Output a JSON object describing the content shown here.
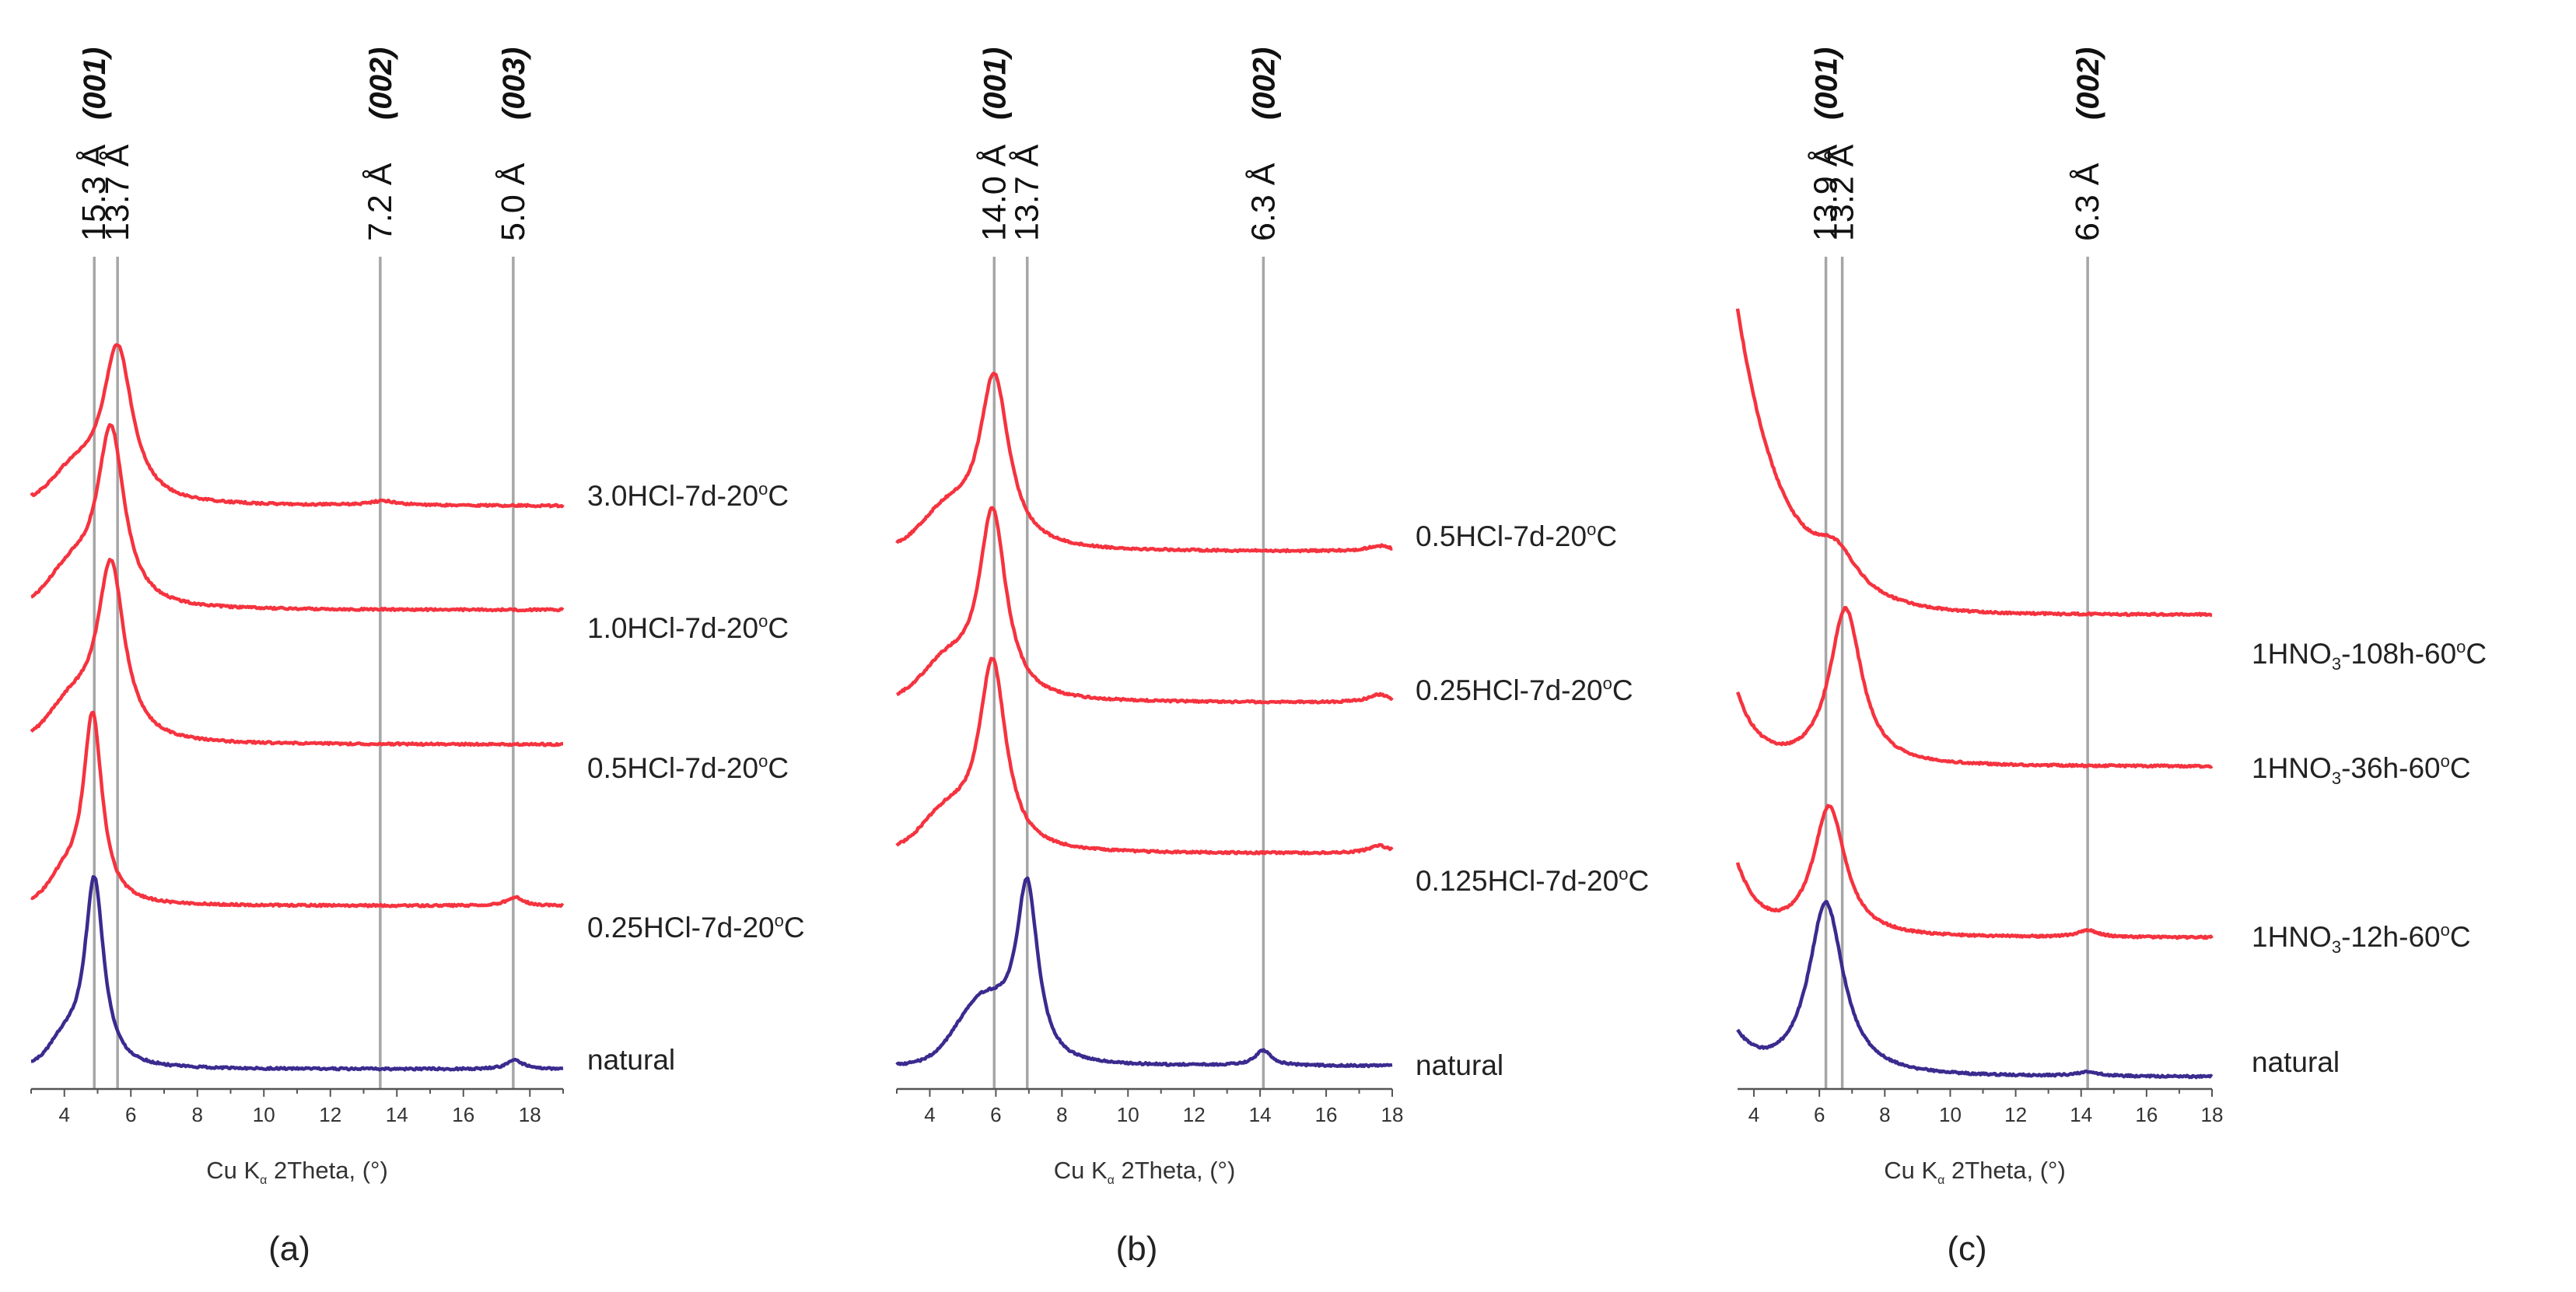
{
  "chart_data": [
    {
      "id": "a",
      "type": "line",
      "panel_label": "(a)",
      "xlabel": {
        "pre": "Cu K",
        "sub": "α",
        "post": " 2Theta, (°)"
      },
      "xlim": [
        3,
        19
      ],
      "xticks": [
        4,
        6,
        8,
        10,
        12,
        14,
        16,
        18
      ],
      "xtick_labels": [
        "4",
        "6",
        "8",
        "10",
        "12",
        "14",
        "16",
        "18"
      ],
      "reference_lines": [
        {
          "x": 4.9,
          "d": "15.3 Å",
          "hkl": "(001)"
        },
        {
          "x": 5.6,
          "d": "13.7 Å",
          "hkl": ""
        },
        {
          "x": 13.5,
          "d": "7.2 Å",
          "hkl": "(002)"
        },
        {
          "x": 17.5,
          "d": "5.0 Å",
          "hkl": "(003)"
        }
      ],
      "series": [
        {
          "name": "3.0HCl-7d-20°C",
          "label_pre": "3.0HCl-7d-20",
          "label_post": "C",
          "color": "#f5333f",
          "offset": 3.9,
          "peaks": [
            {
              "x": 5.6,
              "h": 1.45,
              "w": 0.55
            },
            {
              "x": 13.6,
              "h": 0.04,
              "w": 0.5
            }
          ],
          "shoulder": {
            "x": 4.3,
            "h": 0.25,
            "w": 0.9
          }
        },
        {
          "name": "1.0HCl-7d-20°C",
          "label_pre": "1.0HCl-7d-20",
          "label_post": "C",
          "color": "#f5333f",
          "offset": 2.95,
          "peaks": [
            {
              "x": 5.4,
              "h": 1.65,
              "w": 0.5
            }
          ],
          "shoulder": {
            "x": 4.2,
            "h": 0.3,
            "w": 0.9
          }
        },
        {
          "name": "0.5HCl-7d-20°C",
          "label_pre": "0.5HCl-7d-20",
          "label_post": "C",
          "color": "#f5333f",
          "offset": 1.95,
          "peaks": [
            {
              "x": 5.4,
              "h": 1.65,
              "w": 0.5
            }
          ],
          "shoulder": {
            "x": 4.2,
            "h": 0.3,
            "w": 0.9
          }
        },
        {
          "name": "0.25HCl-7d-20°C",
          "label_pre": "0.25HCl-7d-20",
          "label_post": "C",
          "color": "#f5333f",
          "offset": 1.0,
          "peaks": [
            {
              "x": 4.85,
              "h": 1.75,
              "w": 0.35
            },
            {
              "x": 17.55,
              "h": 0.08,
              "w": 0.3
            }
          ],
          "shoulder": {
            "x": 4.0,
            "h": 0.2,
            "w": 0.6
          }
        },
        {
          "name": "natural",
          "label_pre": "natural",
          "label_post": "",
          "color": "#3a2b8f",
          "offset": 0.0,
          "peaks": [
            {
              "x": 4.9,
              "h": 1.75,
              "w": 0.35
            },
            {
              "x": 17.55,
              "h": 0.08,
              "w": 0.3
            }
          ],
          "shoulder": {
            "x": 4.0,
            "h": 0.2,
            "w": 0.6
          }
        }
      ]
    },
    {
      "id": "b",
      "type": "line",
      "panel_label": "(b)",
      "xlabel": {
        "pre": "Cu K",
        "sub": "α",
        "post": " 2Theta, (°)"
      },
      "xlim": [
        3,
        18
      ],
      "xticks": [
        4,
        6,
        8,
        10,
        12,
        14,
        16,
        18
      ],
      "xtick_labels": [
        "4",
        "6",
        "8",
        "10",
        "12",
        "14",
        "16",
        "18"
      ],
      "reference_lines": [
        {
          "x": 5.95,
          "d": "14.0 Å",
          "hkl": "(001)"
        },
        {
          "x": 6.95,
          "d": "13.7 Å",
          "hkl": ""
        },
        {
          "x": 14.1,
          "d": "6.3 Å",
          "hkl": "(002)"
        }
      ],
      "series": [
        {
          "name": "0.5HCl-7d-20°C",
          "label_pre": "0.5HCl-7d-20",
          "label_post": "C",
          "color": "#f5333f",
          "offset": 3.6,
          "peaks": [
            {
              "x": 5.95,
              "h": 1.6,
              "w": 0.55
            },
            {
              "x": 17.6,
              "h": 0.05,
              "w": 0.4
            }
          ],
          "shoulder": {
            "x": 4.5,
            "h": 0.3,
            "w": 1.0
          }
        },
        {
          "name": "0.25HCl-7d-20°C",
          "label_pre": "0.25HCl-7d-20",
          "label_post": "C",
          "color": "#f5333f",
          "offset": 2.5,
          "peaks": [
            {
              "x": 5.9,
              "h": 1.75,
              "w": 0.5
            },
            {
              "x": 17.6,
              "h": 0.07,
              "w": 0.4
            }
          ],
          "shoulder": {
            "x": 4.5,
            "h": 0.3,
            "w": 1.0
          }
        },
        {
          "name": "0.125HCl-7d-20°C",
          "label_pre": "0.125HCl-7d-20",
          "label_post": "C",
          "color": "#f5333f",
          "offset": 1.4,
          "peaks": [
            {
              "x": 5.9,
              "h": 1.75,
              "w": 0.5
            },
            {
              "x": 17.6,
              "h": 0.07,
              "w": 0.4
            }
          ],
          "shoulder": {
            "x": 4.5,
            "h": 0.3,
            "w": 1.0
          }
        },
        {
          "name": "natural",
          "label_pre": "natural",
          "label_post": "",
          "color": "#3a2b8f",
          "offset": 0.0,
          "peaks": [
            {
              "x": 6.95,
              "h": 1.6,
              "w": 0.4
            },
            {
              "x": 14.1,
              "h": 0.14,
              "w": 0.3
            }
          ],
          "shoulder": {
            "x": 5.6,
            "h": 0.55,
            "w": 1.1
          }
        }
      ]
    },
    {
      "id": "c",
      "type": "line",
      "panel_label": "(c)",
      "xlabel": {
        "pre": "Cu K",
        "sub": "α",
        "post": " 2Theta, (°)"
      },
      "xlim": [
        3.5,
        18
      ],
      "xticks": [
        4,
        6,
        8,
        10,
        12,
        14,
        16,
        18
      ],
      "xtick_labels": [
        "4",
        "6",
        "8",
        "10",
        "12",
        "14",
        "16",
        "18"
      ],
      "reference_lines": [
        {
          "x": 6.2,
          "d": "13.9 Å",
          "hkl": "(001)"
        },
        {
          "x": 6.7,
          "d": "13.2 Å",
          "hkl": ""
        },
        {
          "x": 14.2,
          "d": "6.3 Å",
          "hkl": "(002)"
        }
      ],
      "series": [
        {
          "name": "1HNO₃-108h-60°C",
          "label_pre": "1HNO",
          "label_sub": "3",
          "label_mid": "-108h-60",
          "label_post": "C",
          "color": "#f5333f",
          "offset": 3.0,
          "decay": {
            "a": 2.6,
            "k": 0.7,
            "x0": 3.6
          },
          "peaks": [
            {
              "x": 6.5,
              "h": 0.35,
              "w": 0.8
            }
          ]
        },
        {
          "name": "1HNO₃-36h-60°C",
          "label_pre": "1HNO",
          "label_sub": "3",
          "label_mid": "-36h-60",
          "label_post": "C",
          "color": "#f5333f",
          "offset": 1.95,
          "decay": {
            "a": 0.55,
            "k": 1.5,
            "x0": 3.6
          },
          "peaks": [
            {
              "x": 6.8,
              "h": 1.45,
              "w": 0.6
            }
          ]
        },
        {
          "name": "1HNO₃-12h-60°C",
          "label_pre": "1HNO",
          "label_sub": "3",
          "label_mid": "-12h-60",
          "label_post": "C",
          "color": "#f5333f",
          "offset": 1.0,
          "decay": {
            "a": 0.55,
            "k": 1.5,
            "x0": 3.6
          },
          "peaks": [
            {
              "x": 6.3,
              "h": 1.2,
              "w": 0.6
            },
            {
              "x": 14.2,
              "h": 0.06,
              "w": 0.4
            }
          ]
        },
        {
          "name": "natural",
          "label_pre": "natural",
          "label_post": "",
          "color": "#3a2b8f",
          "offset": 0.0,
          "decay": {
            "a": 0.3,
            "k": 1.5,
            "x0": 3.6
          },
          "peaks": [
            {
              "x": 6.2,
              "h": 1.6,
              "w": 0.65
            },
            {
              "x": 14.2,
              "h": 0.04,
              "w": 0.4
            }
          ]
        }
      ]
    }
  ]
}
